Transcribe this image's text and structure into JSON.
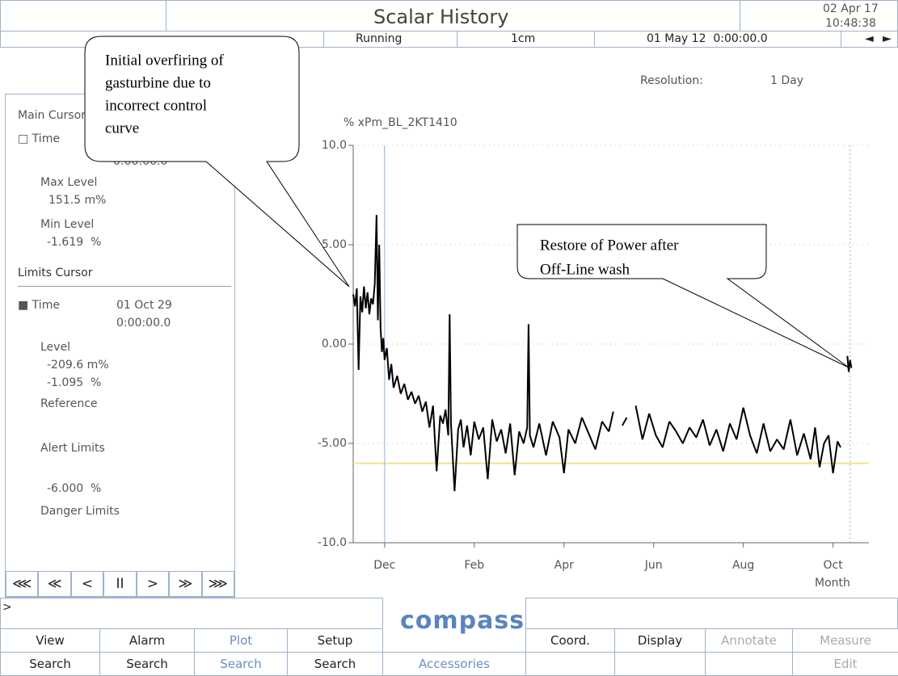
{
  "header": {
    "title": "Scalar History",
    "date": "02 Apr 17",
    "time": "10:48:38"
  },
  "status": {
    "state": "Running",
    "scale": "1cm",
    "start": "01 May 12  0:00:00.0",
    "prev": "◄",
    "next": "►"
  },
  "resolution": {
    "label": "Resolution:",
    "value": "1 Day"
  },
  "sidebar": {
    "main_title": "Main Cursor",
    "main_time": "□ Time",
    "main_time_value": "0:00:00.0",
    "max_label": "Max Level",
    "max_value": "151.5 m%",
    "min_label": "Min Level",
    "min_value": "-1.619  %",
    "limits_title": "Limits Cursor",
    "limits_time": "■ Time",
    "limits_date": "01 Oct 29",
    "limits_clock": "0:00:00.0",
    "level_label": "Level",
    "level_value_1": "-209.6 m%",
    "level_value_2": "-1.095  %",
    "reference": "Reference",
    "alert_label": "Alert Limits",
    "alert_value": "-6.000  %",
    "danger_label": "Danger Limits"
  },
  "nav": [
    "⋘",
    "≪",
    "<",
    "II",
    ">",
    "≫",
    "⋙"
  ],
  "prompt": ">",
  "logo": "compass",
  "buttons": {
    "row1": [
      "View",
      "Alarm",
      "Plot",
      "Setup",
      "Coord.",
      "Display",
      "Annotate",
      "Measure"
    ],
    "row2": [
      "Search",
      "Search",
      "Search",
      "Search",
      "Accessories",
      "Edit"
    ]
  },
  "chart_data": {
    "type": "line",
    "y_label": "% xPm_BL_2KT1410",
    "x_label": "Month",
    "xlim": [
      0.3,
      11.8
    ],
    "xticks": [
      {
        "value": 1,
        "label": "Dec"
      },
      {
        "value": 3,
        "label": "Feb"
      },
      {
        "value": 5,
        "label": "Apr"
      },
      {
        "value": 7,
        "label": "Jun"
      },
      {
        "value": 9,
        "label": "Aug"
      },
      {
        "value": 11,
        "label": "Oct"
      }
    ],
    "ylim": [
      -10,
      10
    ],
    "yticks": [
      {
        "value": 10,
        "label": "10.0"
      },
      {
        "value": 5,
        "label": "5.00"
      },
      {
        "value": 0,
        "label": "0.00"
      },
      {
        "value": -5,
        "label": "-5.00"
      },
      {
        "value": -10,
        "label": "-10.0"
      }
    ],
    "grid": true,
    "alert_limit": -6,
    "alert_color": "#efe38a",
    "cursors": [
      1.0,
      11.38
    ],
    "cursor_color": "#8fb0d8",
    "series": [
      {
        "name": "xPm_BL_2KT1410",
        "color": "#000000",
        "x": [
          0.3,
          0.34,
          0.38,
          0.42,
          0.46,
          0.5,
          0.54,
          0.58,
          0.62,
          0.66,
          0.7,
          0.74,
          0.78,
          0.82,
          0.85,
          0.88,
          0.91,
          0.94,
          0.97,
          1.0,
          1.05,
          1.1,
          1.15,
          1.2,
          1.28,
          1.36,
          1.44,
          1.52,
          1.6,
          1.68,
          1.76,
          1.84,
          1.92,
          2.0,
          2.08,
          2.16,
          2.24,
          2.3,
          2.36,
          2.42,
          2.45,
          2.48,
          2.56,
          2.64,
          2.7,
          2.76,
          2.84,
          2.92,
          3.0,
          3.1,
          3.2,
          3.3,
          3.4,
          3.5,
          3.6,
          3.7,
          3.8,
          3.9,
          4.0,
          4.1,
          4.18,
          4.21,
          4.24,
          4.32,
          4.45,
          4.6,
          4.75,
          4.9,
          5.0,
          5.1,
          5.25,
          5.4,
          5.55,
          5.7,
          5.85,
          6.0,
          6.1,
          6.2,
          6.3,
          6.4,
          6.5,
          6.6,
          6.75,
          6.9,
          7.05,
          7.2,
          7.35,
          7.5,
          7.65,
          7.8,
          7.95,
          8.1,
          8.25,
          8.4,
          8.55,
          8.7,
          8.85,
          9.0,
          9.15,
          9.3,
          9.45,
          9.6,
          9.75,
          9.9,
          10.05,
          10.2,
          10.35,
          10.5,
          10.6,
          10.7,
          10.8,
          10.9,
          11.0,
          11.1,
          11.17,
          11.25,
          11.32,
          11.35,
          11.38,
          11.41
        ],
        "values": [
          2.5,
          1.9,
          2.8,
          -1.3,
          2.4,
          1.6,
          2.9,
          1.8,
          2.6,
          1.5,
          2.3,
          2.0,
          3.0,
          6.5,
          1.2,
          5.0,
          0.8,
          -0.4,
          0.3,
          -0.8,
          -0.2,
          -1.8,
          -1.0,
          -2.2,
          -1.6,
          -2.5,
          -2.0,
          -2.8,
          -2.4,
          -3.0,
          -2.6,
          -3.4,
          -2.9,
          -4.2,
          -3.1,
          -6.4,
          -3.6,
          -4.0,
          -3.3,
          -4.6,
          1.5,
          -4.0,
          -7.4,
          -4.3,
          -3.8,
          -5.2,
          -4.1,
          -5.6,
          -3.9,
          -4.8,
          -4.2,
          -6.8,
          -3.8,
          -4.9,
          -4.3,
          -5.5,
          -4.0,
          -6.6,
          -4.4,
          -5.0,
          -4.2,
          1.0,
          -4.6,
          -5.2,
          -4.0,
          -5.6,
          -3.9,
          -4.7,
          -6.5,
          -4.3,
          -5.0,
          -3.7,
          -4.5,
          -5.3,
          -3.9,
          -4.4,
          -3.4,
          null,
          -4.1,
          -3.7,
          null,
          -3.1,
          -4.8,
          -3.5,
          -4.6,
          -5.2,
          -3.9,
          -4.4,
          -5.0,
          -4.2,
          -4.7,
          -3.8,
          -5.1,
          -4.3,
          -5.4,
          -4.0,
          -4.8,
          -3.2,
          -4.6,
          -5.5,
          -4.0,
          -5.4,
          -4.8,
          -5.3,
          -3.8,
          -5.6,
          -4.5,
          -5.8,
          -4.2,
          -6.2,
          -5.0,
          -4.6,
          -6.5,
          -4.9,
          -5.2,
          null,
          -0.6,
          -1.4,
          -0.8,
          -1.2
        ]
      }
    ],
    "annotations": [
      {
        "lines": [
          "Initial overfiring of",
          "gasturbine due to",
          "incorrect control",
          "curve"
        ]
      },
      {
        "lines": [
          "Restore of Power after",
          "Off-Line wash"
        ]
      }
    ]
  }
}
